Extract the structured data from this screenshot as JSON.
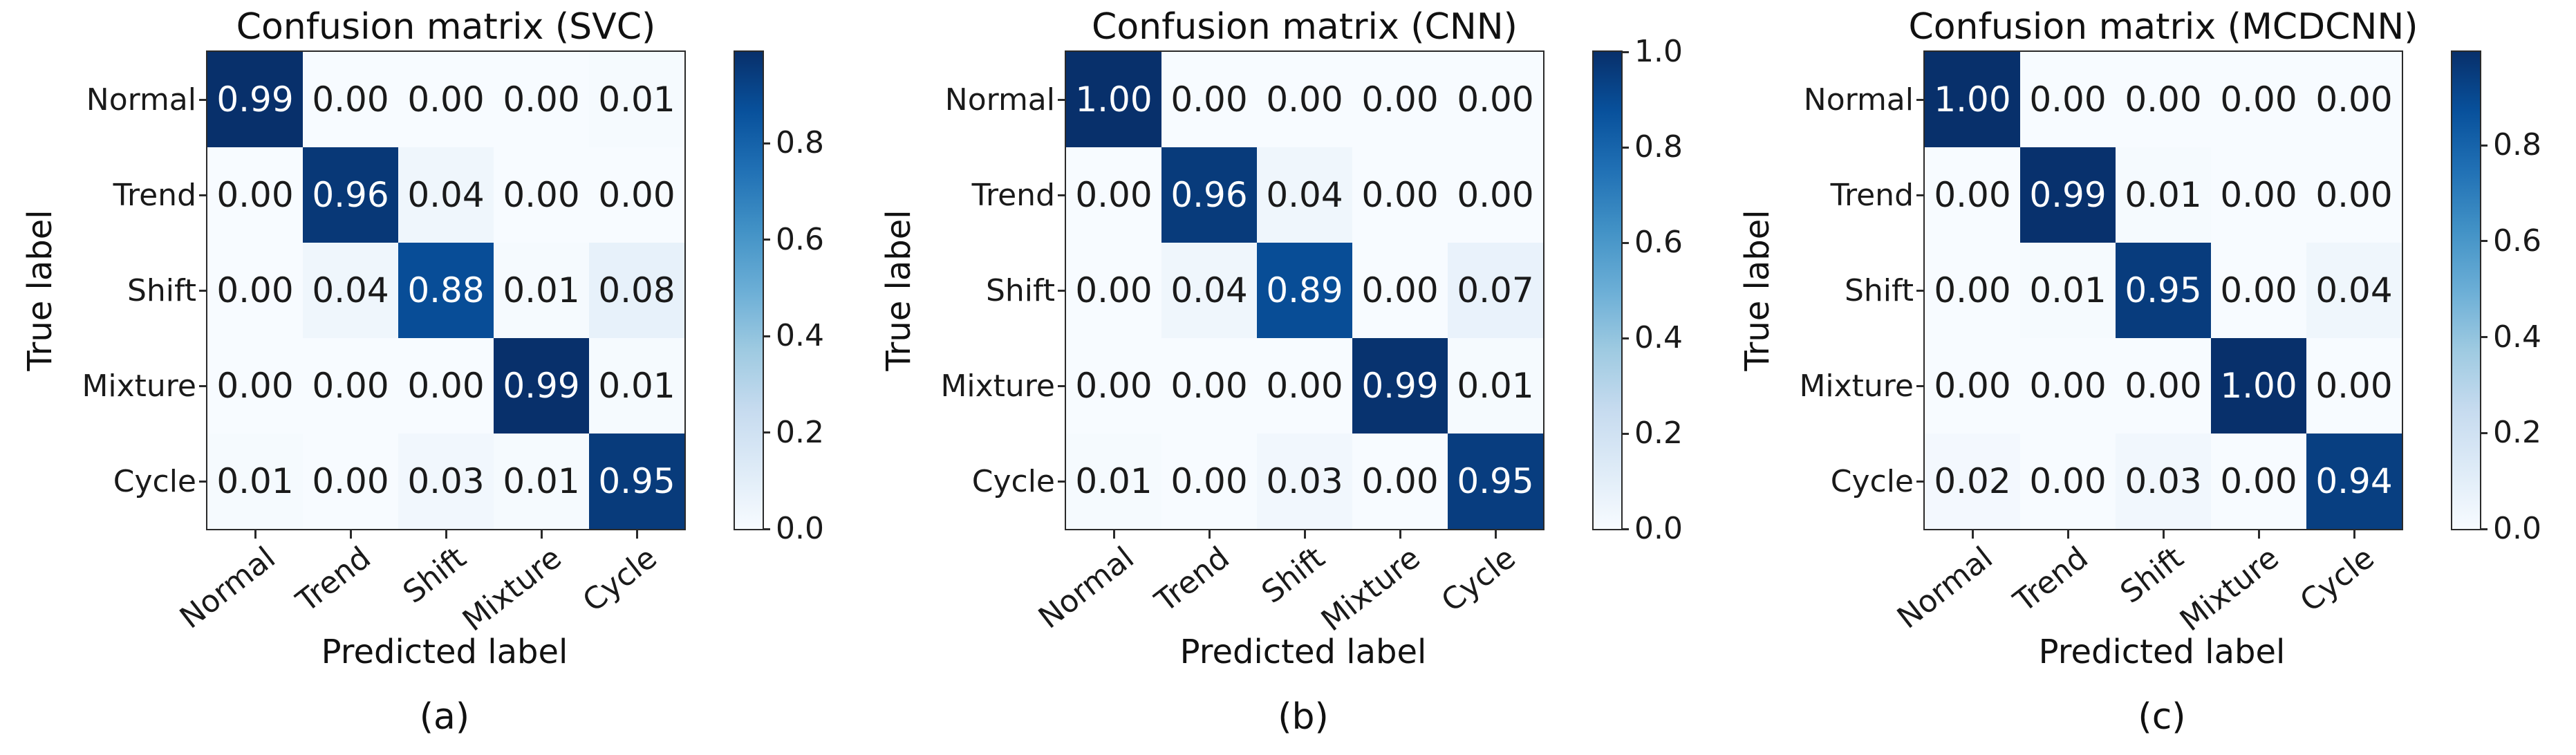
{
  "colors": {
    "colormap": "Blues",
    "cmap_low": "#f7fbff",
    "cmap_high": "#08306b",
    "cell_text_light": "#ffffff",
    "cell_text_dark": "#1a1a1a",
    "axis_color": "#2a2a2a",
    "background": "#ffffff"
  },
  "chart_data": [
    {
      "type": "heatmap",
      "title": "Confusion matrix (SVC)",
      "caption": "(a)",
      "xlabel": "Predicted label",
      "ylabel": "True label",
      "x_categories": [
        "Normal",
        "Trend",
        "Shift",
        "Mixture",
        "Cycle"
      ],
      "y_categories": [
        "Normal",
        "Trend",
        "Shift",
        "Mixture",
        "Cycle"
      ],
      "values": [
        [
          0.99,
          0.0,
          0.0,
          0.0,
          0.01
        ],
        [
          0.0,
          0.96,
          0.04,
          0.0,
          0.0
        ],
        [
          0.0,
          0.04,
          0.88,
          0.01,
          0.08
        ],
        [
          0.0,
          0.0,
          0.0,
          0.99,
          0.01
        ],
        [
          0.01,
          0.0,
          0.03,
          0.01,
          0.95
        ]
      ],
      "value_decimals": 2,
      "vmin": 0.0,
      "vmax": 0.99,
      "colorbar_ticks": [
        0.8,
        0.6,
        0.4,
        0.2,
        0.0
      ],
      "legend_position": "right-colorbar",
      "grid": false
    },
    {
      "type": "heatmap",
      "title": "Confusion matrix (CNN)",
      "caption": "(b)",
      "xlabel": "Predicted label",
      "ylabel": "True label",
      "x_categories": [
        "Normal",
        "Trend",
        "Shift",
        "Mixture",
        "Cycle"
      ],
      "y_categories": [
        "Normal",
        "Trend",
        "Shift",
        "Mixture",
        "Cycle"
      ],
      "values": [
        [
          1.0,
          0.0,
          0.0,
          0.0,
          0.0
        ],
        [
          0.0,
          0.96,
          0.04,
          0.0,
          0.0
        ],
        [
          0.0,
          0.04,
          0.89,
          0.0,
          0.07
        ],
        [
          0.0,
          0.0,
          0.0,
          0.99,
          0.01
        ],
        [
          0.01,
          0.0,
          0.03,
          0.0,
          0.95
        ]
      ],
      "value_decimals": 2,
      "vmin": 0.0,
      "vmax": 1.0,
      "colorbar_ticks": [
        1.0,
        0.8,
        0.6,
        0.4,
        0.2,
        0.0
      ],
      "legend_position": "right-colorbar",
      "grid": false
    },
    {
      "type": "heatmap",
      "title": "Confusion matrix (MCDCNN)",
      "caption": "(c)",
      "xlabel": "Predicted label",
      "ylabel": "True label",
      "x_categories": [
        "Normal",
        "Trend",
        "Shift",
        "Mixture",
        "Cycle"
      ],
      "y_categories": [
        "Normal",
        "Trend",
        "Shift",
        "Mixture",
        "Cycle"
      ],
      "values": [
        [
          1.0,
          0.0,
          0.0,
          0.0,
          0.0
        ],
        [
          0.0,
          0.99,
          0.01,
          0.0,
          0.0
        ],
        [
          0.0,
          0.01,
          0.95,
          0.0,
          0.04
        ],
        [
          0.0,
          0.0,
          0.0,
          1.0,
          0.0
        ],
        [
          0.02,
          0.0,
          0.03,
          0.0,
          0.94
        ]
      ],
      "value_decimals": 2,
      "vmin": 0.0,
      "vmax": 0.995,
      "colorbar_ticks": [
        0.8,
        0.6,
        0.4,
        0.2,
        0.0
      ],
      "legend_position": "right-colorbar",
      "grid": false
    }
  ]
}
